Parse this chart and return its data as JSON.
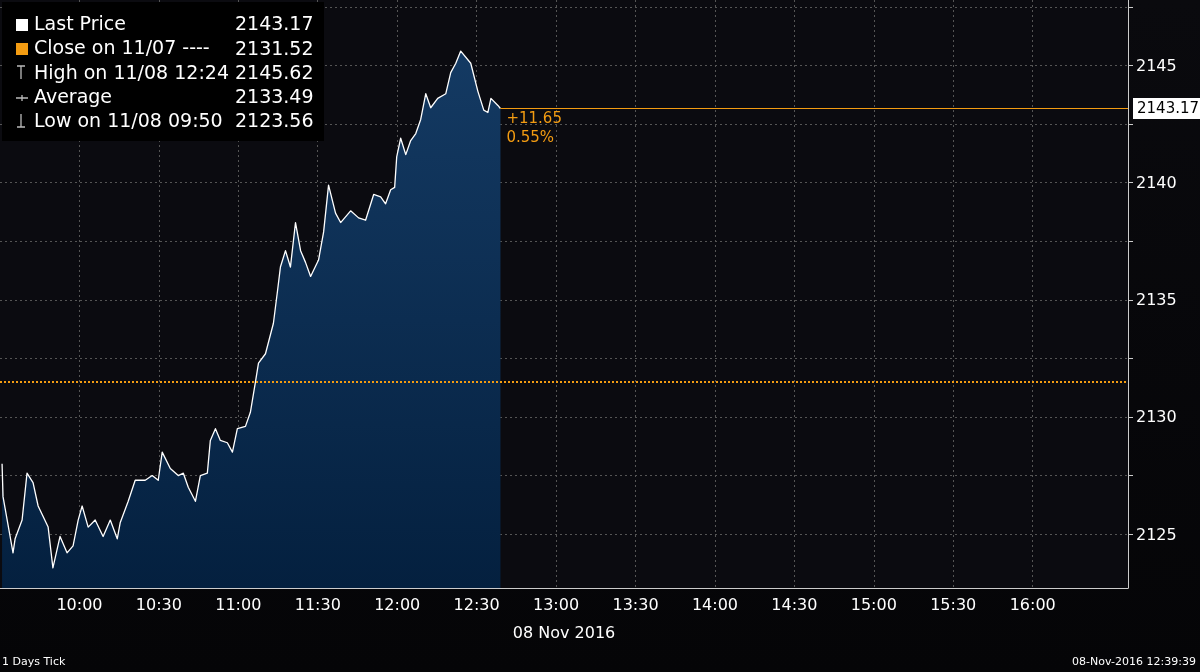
{
  "chart_data": {
    "type": "area",
    "xlabel": "08 Nov 2016",
    "x": [
      9.513,
      9.519,
      9.582,
      9.595,
      9.639,
      9.67,
      9.708,
      9.74,
      9.803,
      9.833,
      9.878,
      9.922,
      9.96,
      9.992,
      10.017,
      10.055,
      10.099,
      10.149,
      10.194,
      10.238,
      10.257,
      10.307,
      10.351,
      10.414,
      10.458,
      10.496,
      10.521,
      10.572,
      10.622,
      10.654,
      10.685,
      10.73,
      10.761,
      10.805,
      10.824,
      10.856,
      10.887,
      10.931,
      10.963,
      10.994,
      11.045,
      11.076,
      11.108,
      11.127,
      11.171,
      11.221,
      11.247,
      11.265,
      11.297,
      11.328,
      11.36,
      11.392,
      11.423,
      11.455,
      11.505,
      11.537,
      11.568,
      11.612,
      11.644,
      11.707,
      11.757,
      11.801,
      11.852,
      11.896,
      11.927,
      11.959,
      11.984,
      11.997,
      12.022,
      12.054,
      12.085,
      12.117,
      12.148,
      12.18,
      12.211,
      12.255,
      12.306,
      12.337,
      12.369,
      12.4,
      12.463,
      12.508,
      12.545,
      12.571,
      12.59,
      12.634,
      12.65
    ],
    "series": [
      {
        "name": "Last Price",
        "color": "#ffffff",
        "values": [
          2128.0,
          2126.6,
          2124.2,
          2124.8,
          2125.6,
          2127.6,
          2127.2,
          2126.2,
          2125.3,
          2123.56,
          2124.9,
          2124.2,
          2124.5,
          2125.6,
          2126.2,
          2125.3,
          2125.6,
          2124.9,
          2125.6,
          2124.8,
          2125.5,
          2126.4,
          2127.3,
          2127.3,
          2127.5,
          2127.3,
          2128.5,
          2127.8,
          2127.5,
          2127.6,
          2127.0,
          2126.4,
          2127.5,
          2127.6,
          2129.0,
          2129.5,
          2129.0,
          2128.9,
          2128.5,
          2129.5,
          2129.6,
          2130.2,
          2131.5,
          2132.3,
          2132.7,
          2134.0,
          2135.4,
          2136.4,
          2137.1,
          2136.4,
          2138.3,
          2137.1,
          2136.6,
          2136.0,
          2136.7,
          2137.9,
          2139.9,
          2138.7,
          2138.3,
          2138.8,
          2138.5,
          2138.4,
          2139.5,
          2139.4,
          2139.1,
          2139.7,
          2139.8,
          2141.1,
          2141.9,
          2141.2,
          2141.8,
          2142.1,
          2142.7,
          2143.8,
          2143.2,
          2143.6,
          2143.8,
          2144.7,
          2145.1,
          2145.62,
          2145.1,
          2143.9,
          2143.1,
          2143.0,
          2143.6,
          2143.3,
          2143.17
        ]
      }
    ],
    "xlim": [
      9.5,
      16.6
    ],
    "xticks": [
      {
        "value": 10,
        "label": "10:00"
      },
      {
        "value": 10.5,
        "label": "10:30"
      },
      {
        "value": 11,
        "label": "11:00"
      },
      {
        "value": 11.5,
        "label": "11:30"
      },
      {
        "value": 12,
        "label": "12:00"
      },
      {
        "value": 12.5,
        "label": "12:30"
      },
      {
        "value": 13,
        "label": "13:00"
      },
      {
        "value": 13.5,
        "label": "13:30"
      },
      {
        "value": 14,
        "label": "14:00"
      },
      {
        "value": 14.5,
        "label": "14:30"
      },
      {
        "value": 15,
        "label": "15:00"
      },
      {
        "value": 15.5,
        "label": "15:30"
      },
      {
        "value": 16,
        "label": "16:00"
      }
    ],
    "ylim": [
      2122.7,
      2147.8
    ],
    "yticks": [
      2125,
      {
        "value": 2127.5,
        "label": null
      },
      2130,
      {
        "value": 2132.5,
        "label": null
      },
      2135,
      {
        "value": 2137.5,
        "label": null
      },
      2140,
      {
        "value": 2142.5,
        "label": null
      },
      2145,
      {
        "value": 2147.5,
        "label": null
      }
    ],
    "ref_lines": [
      {
        "axis": "y",
        "value": 2131.52,
        "color": "#f39c12",
        "line_style": "dotted"
      },
      {
        "axis": "y",
        "value": 2143.17,
        "label": "2143.17",
        "color": "#f39c12",
        "line_style": "solid"
      }
    ],
    "grid": true,
    "legend": "top left",
    "line_style": "solid",
    "marker": "none",
    "annotations": [
      "2143.17",
      "Close on 11/07 ----",
      "2131.52",
      "High on 11/08 12:24",
      "2145.62",
      "Average",
      "2133.49",
      "Low on 11/08 09:50",
      "2123.56",
      "+11.65",
      "0.55%",
      "1 Days  Tick",
      "08-Nov-2016 12:39:39"
    ]
  }
}
